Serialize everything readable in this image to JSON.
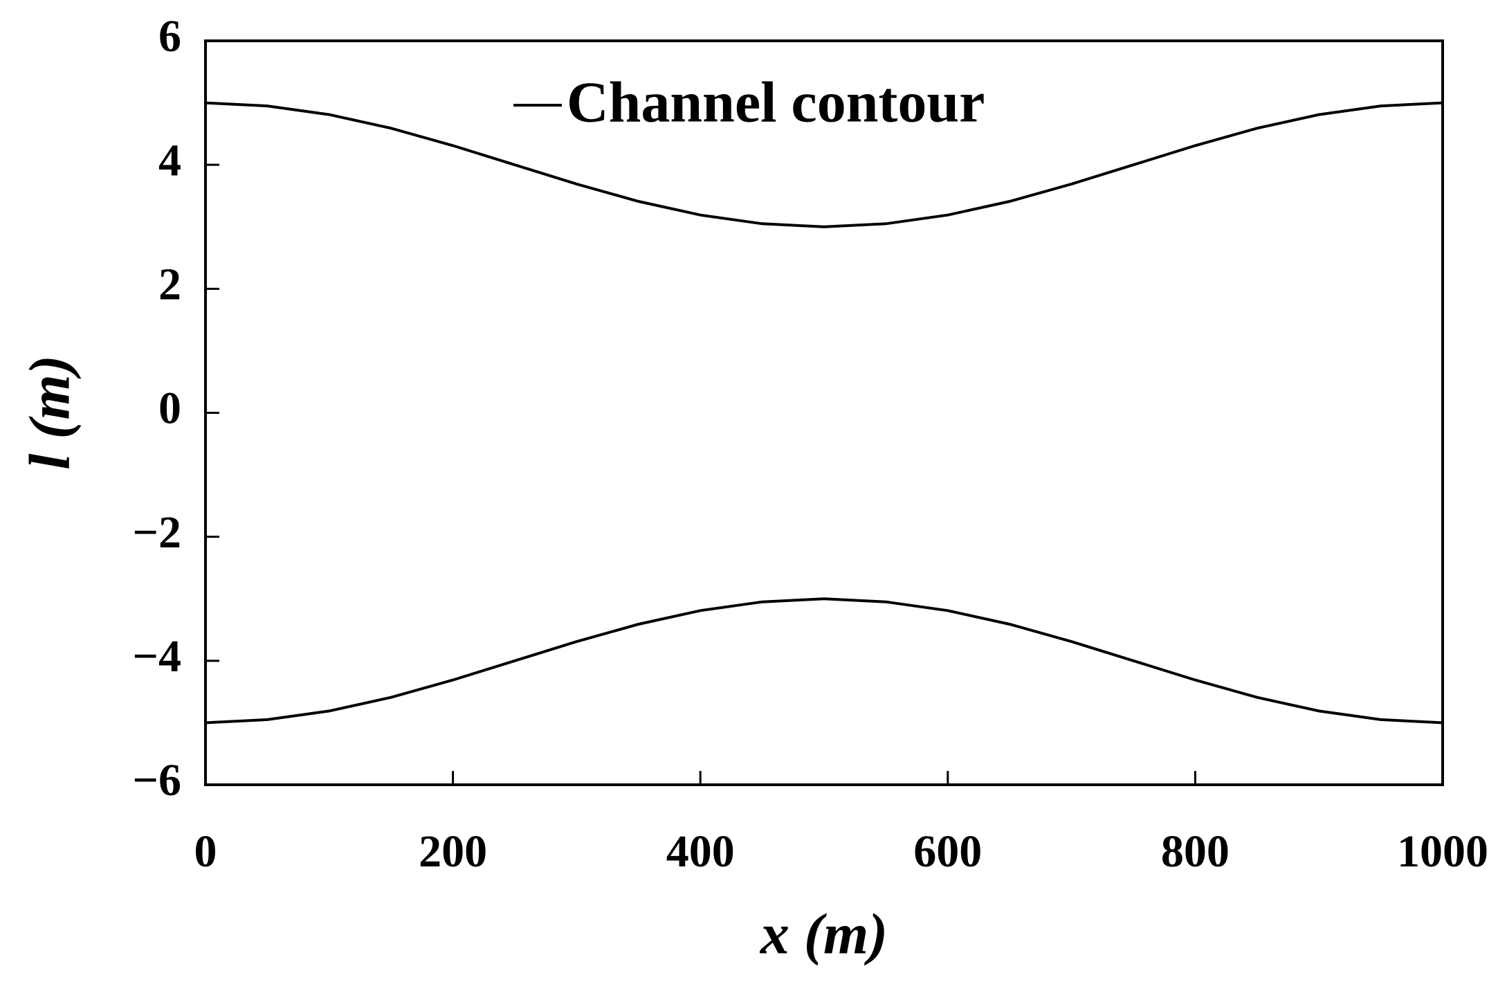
{
  "chart_data": {
    "type": "line",
    "xlabel": "x (m)",
    "ylabel": "l (m)",
    "x": [
      0,
      50,
      100,
      150,
      200,
      250,
      300,
      350,
      400,
      450,
      500,
      550,
      600,
      650,
      700,
      750,
      800,
      850,
      900,
      950,
      1000
    ],
    "series": [
      {
        "name": "Channel contour",
        "color": "#000000",
        "values": [
          5,
          4.95,
          4.81,
          4.59,
          4.31,
          4,
          3.69,
          3.41,
          3.19,
          3.05,
          3,
          3.05,
          3.19,
          3.41,
          3.69,
          4,
          4.31,
          4.59,
          4.81,
          4.95,
          5
        ]
      },
      {
        "color": "#000000",
        "values": [
          -5,
          -4.95,
          -4.81,
          -4.59,
          -4.31,
          -4,
          -3.69,
          -3.41,
          -3.19,
          -3.05,
          -3,
          -3.05,
          -3.19,
          -3.41,
          -3.69,
          -4,
          -4.31,
          -4.59,
          -4.81,
          -4.95,
          -5
        ]
      }
    ],
    "xlim": [
      0,
      1000
    ],
    "xticks": [
      0,
      200,
      400,
      600,
      800,
      1000
    ],
    "ylim": [
      -6,
      6
    ],
    "yticks": [
      {
        "value": -6,
        "label": "−6"
      },
      {
        "value": -4,
        "label": "−4"
      },
      {
        "value": -2,
        "label": "−2"
      },
      0,
      2,
      4,
      6
    ],
    "grid": false,
    "legend": "upper center"
  }
}
